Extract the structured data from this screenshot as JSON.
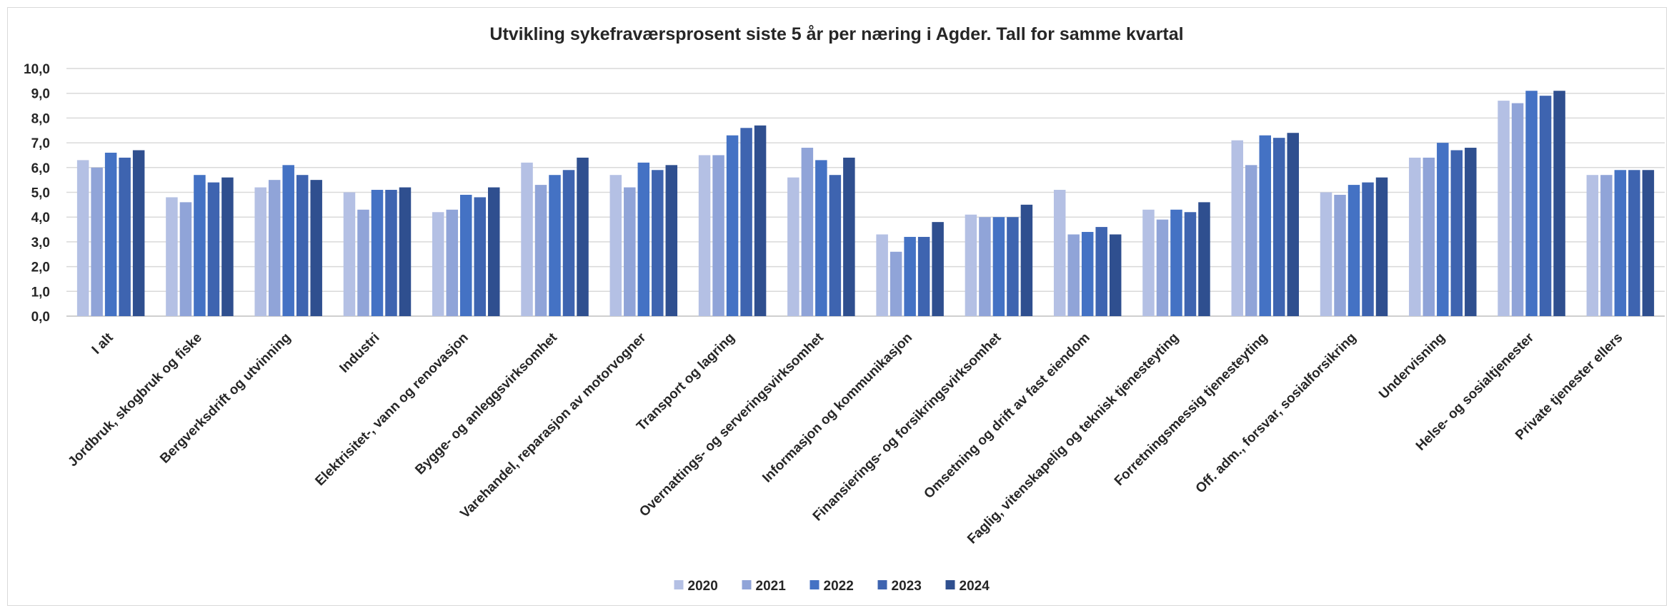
{
  "chart_data": {
    "type": "bar",
    "title": "Utvikling sykefraværsprosent siste 5 år per næring i Agder. Tall for samme kvartal",
    "xlabel": "",
    "ylabel": "",
    "ylim": [
      0,
      10
    ],
    "yticks": [
      "0,0",
      "1,0",
      "2,0",
      "3,0",
      "4,0",
      "5,0",
      "6,0",
      "7,0",
      "8,0",
      "9,0",
      "10,0"
    ],
    "grid": true,
    "legend_position": "bottom",
    "categories": [
      "I alt",
      "Jordbruk, skogbruk og fiske",
      "Bergverksdrift og utvinning",
      "Industri",
      "Elektrisitet-, vann og renovasjon",
      "Bygge- og anleggsvirksomhet",
      "Varehandel, reparasjon av motorvogner",
      "Transport og lagring",
      "Overnattings- og serveringsvirksomhet",
      "Informasjon og kommunikasjon",
      "Finansierings- og forsikringsvirksomhet",
      "Omsetning og drift av fast eiendom",
      "Faglig, vitenskapelig og teknisk tjenesteyting",
      "Forretningsmessig tjenesteyting",
      "Off. adm., forsvar, sosialforsikring",
      "Undervisning",
      "Helse- og sosialtjenester",
      "Private tjenester ellers"
    ],
    "series": [
      {
        "name": "2020",
        "color": "#b4c0e4",
        "values": [
          6.3,
          4.8,
          5.2,
          5.0,
          4.2,
          6.2,
          5.7,
          6.5,
          5.6,
          3.3,
          4.1,
          5.1,
          4.3,
          7.1,
          5.0,
          6.4,
          8.7,
          5.7
        ]
      },
      {
        "name": "2021",
        "color": "#90a4d8",
        "values": [
          6.0,
          4.6,
          5.5,
          4.3,
          4.3,
          5.3,
          5.2,
          6.5,
          6.8,
          2.6,
          4.0,
          3.3,
          3.9,
          6.1,
          4.9,
          6.4,
          8.6,
          5.7
        ]
      },
      {
        "name": "2022",
        "color": "#4472c4",
        "values": [
          6.6,
          5.7,
          6.1,
          5.1,
          4.9,
          5.7,
          6.2,
          7.3,
          6.3,
          3.2,
          4.0,
          3.4,
          4.3,
          7.3,
          5.3,
          7.0,
          9.1,
          5.9
        ]
      },
      {
        "name": "2023",
        "color": "#3e64b0",
        "values": [
          6.4,
          5.4,
          5.7,
          5.1,
          4.8,
          5.9,
          5.9,
          7.6,
          5.7,
          3.2,
          4.0,
          3.6,
          4.2,
          7.2,
          5.4,
          6.7,
          8.9,
          5.9
        ]
      },
      {
        "name": "2024",
        "color": "#2f4f8f",
        "values": [
          6.7,
          5.6,
          5.5,
          5.2,
          5.2,
          6.4,
          6.1,
          7.7,
          6.4,
          3.8,
          4.5,
          3.3,
          4.6,
          7.4,
          5.6,
          6.8,
          9.1,
          5.9
        ]
      }
    ]
  }
}
